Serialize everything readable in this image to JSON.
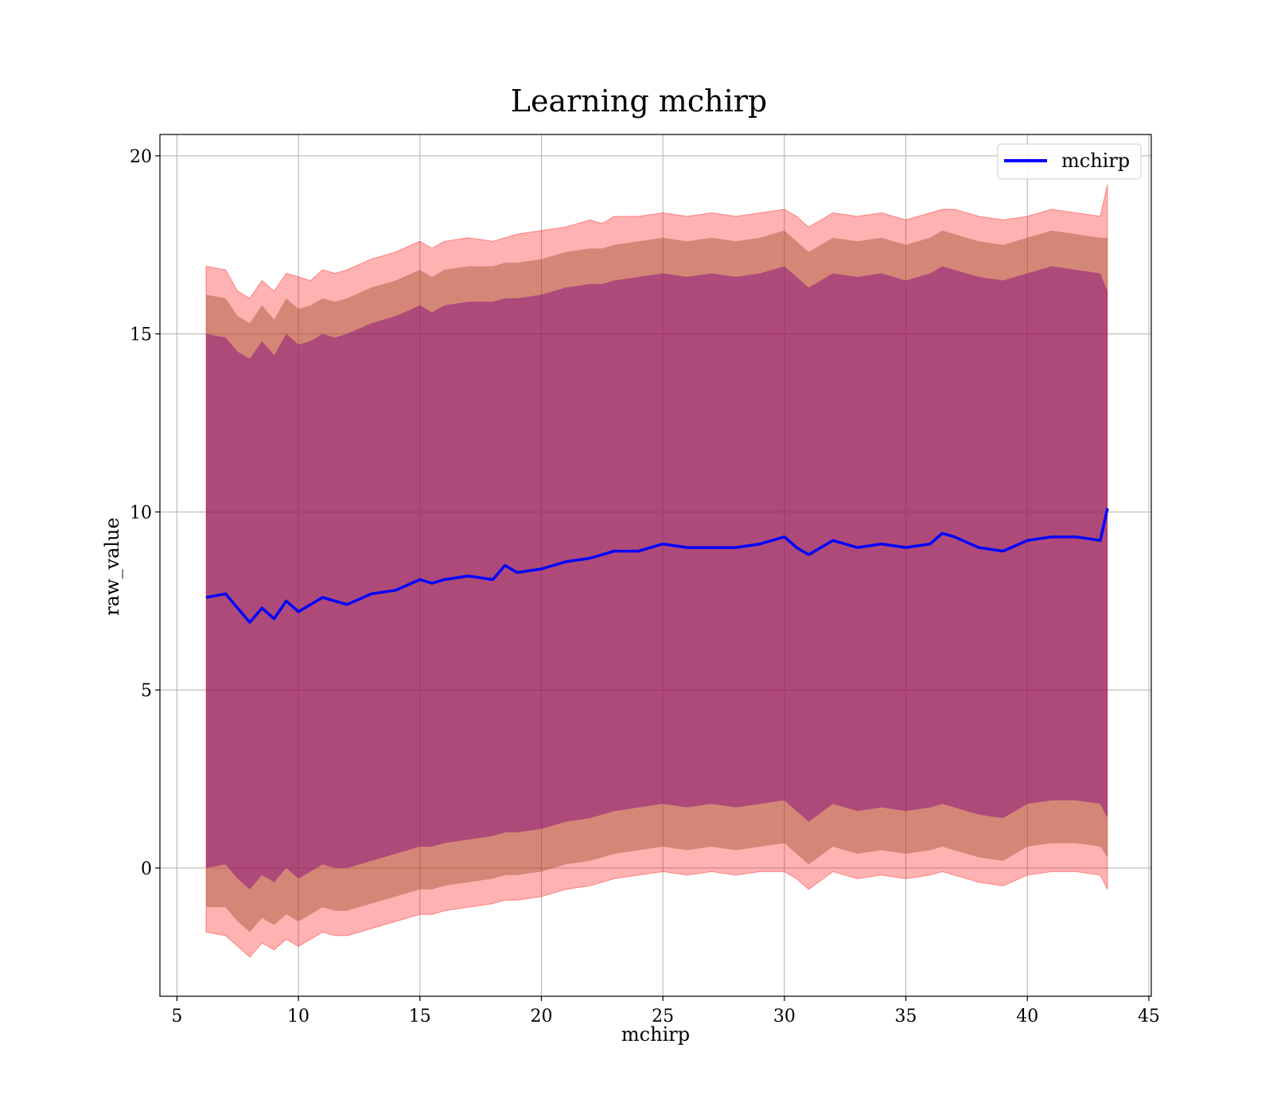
{
  "chart_data": {
    "type": "line",
    "title": "Learning mchirp",
    "xlabel": "mchirp",
    "ylabel": "raw_value",
    "xlim": [
      4.3,
      45.1
    ],
    "ylim": [
      -3.6,
      20.6
    ],
    "xticks": [
      5,
      10,
      15,
      20,
      25,
      30,
      35,
      40,
      45
    ],
    "yticks": [
      0,
      5,
      10,
      15,
      20
    ],
    "grid": true,
    "legend": {
      "position": "top-right",
      "entries": [
        "mchirp"
      ]
    },
    "colors": {
      "line": "#0000ff",
      "band_outer": "#ff0000",
      "band_middle": "#a0522d",
      "band_inner": "#800080"
    },
    "series": [
      {
        "name": "mchirp",
        "x": [
          6.2,
          7.0,
          7.5,
          8.0,
          8.5,
          9.0,
          9.5,
          10.0,
          10.5,
          11.0,
          11.5,
          12.0,
          13.0,
          14.0,
          15.0,
          15.5,
          16.0,
          17.0,
          18.0,
          18.5,
          19.0,
          20.0,
          21.0,
          22.0,
          22.5,
          23.0,
          24.0,
          25.0,
          26.0,
          27.0,
          28.0,
          29.0,
          30.0,
          30.5,
          31.0,
          32.0,
          33.0,
          34.0,
          35.0,
          36.0,
          36.5,
          37.0,
          38.0,
          39.0,
          40.0,
          41.0,
          42.0,
          43.0,
          43.3
        ],
        "y": [
          7.6,
          7.7,
          7.3,
          6.9,
          7.3,
          7.0,
          7.5,
          7.2,
          7.4,
          7.6,
          7.5,
          7.4,
          7.7,
          7.8,
          8.1,
          8.0,
          8.1,
          8.2,
          8.1,
          8.5,
          8.3,
          8.4,
          8.6,
          8.7,
          8.8,
          8.9,
          8.9,
          9.1,
          9.0,
          9.0,
          9.0,
          9.1,
          9.3,
          9.0,
          8.8,
          9.2,
          9.0,
          9.1,
          9.0,
          9.1,
          9.4,
          9.3,
          9.0,
          8.9,
          9.2,
          9.3,
          9.3,
          9.2,
          10.1
        ],
        "band_outer_upper": [
          16.9,
          16.8,
          16.2,
          16.0,
          16.5,
          16.2,
          16.7,
          16.6,
          16.5,
          16.8,
          16.7,
          16.8,
          17.1,
          17.3,
          17.6,
          17.4,
          17.6,
          17.7,
          17.6,
          17.7,
          17.8,
          17.9,
          18.0,
          18.2,
          18.1,
          18.3,
          18.3,
          18.4,
          18.3,
          18.4,
          18.3,
          18.4,
          18.5,
          18.3,
          18.0,
          18.4,
          18.3,
          18.4,
          18.2,
          18.4,
          18.5,
          18.5,
          18.3,
          18.2,
          18.3,
          18.5,
          18.4,
          18.3,
          19.2
        ],
        "band_outer_lower": [
          -1.8,
          -1.9,
          -2.2,
          -2.5,
          -2.1,
          -2.3,
          -2.0,
          -2.2,
          -2.0,
          -1.8,
          -1.9,
          -1.9,
          -1.7,
          -1.5,
          -1.3,
          -1.3,
          -1.2,
          -1.1,
          -1.0,
          -0.9,
          -0.9,
          -0.8,
          -0.6,
          -0.5,
          -0.4,
          -0.3,
          -0.2,
          -0.1,
          -0.2,
          -0.1,
          -0.2,
          -0.1,
          -0.1,
          -0.3,
          -0.6,
          -0.1,
          -0.3,
          -0.2,
          -0.3,
          -0.2,
          -0.1,
          -0.2,
          -0.4,
          -0.5,
          -0.2,
          -0.1,
          -0.1,
          -0.2,
          -0.6
        ],
        "band_middle_upper": [
          16.1,
          16.0,
          15.5,
          15.3,
          15.8,
          15.4,
          16.0,
          15.7,
          15.8,
          16.0,
          15.9,
          16.0,
          16.3,
          16.5,
          16.8,
          16.6,
          16.8,
          16.9,
          16.9,
          17.0,
          17.0,
          17.1,
          17.3,
          17.4,
          17.4,
          17.5,
          17.6,
          17.7,
          17.6,
          17.7,
          17.6,
          17.7,
          17.9,
          17.6,
          17.3,
          17.7,
          17.6,
          17.7,
          17.5,
          17.7,
          17.9,
          17.8,
          17.6,
          17.5,
          17.7,
          17.9,
          17.8,
          17.7,
          17.7
        ],
        "band_middle_lower": [
          -1.1,
          -1.1,
          -1.5,
          -1.8,
          -1.4,
          -1.6,
          -1.3,
          -1.5,
          -1.3,
          -1.1,
          -1.2,
          -1.2,
          -1.0,
          -0.8,
          -0.6,
          -0.6,
          -0.5,
          -0.4,
          -0.3,
          -0.2,
          -0.2,
          -0.1,
          0.1,
          0.2,
          0.3,
          0.4,
          0.5,
          0.6,
          0.5,
          0.6,
          0.5,
          0.6,
          0.7,
          0.4,
          0.1,
          0.6,
          0.4,
          0.5,
          0.4,
          0.5,
          0.6,
          0.5,
          0.3,
          0.2,
          0.6,
          0.7,
          0.7,
          0.6,
          0.3
        ],
        "band_inner_upper": [
          15.0,
          14.9,
          14.5,
          14.3,
          14.8,
          14.4,
          15.0,
          14.7,
          14.8,
          15.0,
          14.9,
          15.0,
          15.3,
          15.5,
          15.8,
          15.6,
          15.8,
          15.9,
          15.9,
          16.0,
          16.0,
          16.1,
          16.3,
          16.4,
          16.4,
          16.5,
          16.6,
          16.7,
          16.6,
          16.7,
          16.6,
          16.7,
          16.9,
          16.6,
          16.3,
          16.7,
          16.6,
          16.7,
          16.5,
          16.7,
          16.9,
          16.8,
          16.6,
          16.5,
          16.7,
          16.9,
          16.8,
          16.7,
          16.2
        ],
        "band_inner_lower": [
          0.0,
          0.1,
          -0.3,
          -0.6,
          -0.2,
          -0.4,
          0.0,
          -0.3,
          -0.1,
          0.1,
          0.0,
          0.0,
          0.2,
          0.4,
          0.6,
          0.6,
          0.7,
          0.8,
          0.9,
          1.0,
          1.0,
          1.1,
          1.3,
          1.4,
          1.5,
          1.6,
          1.7,
          1.8,
          1.7,
          1.8,
          1.7,
          1.8,
          1.9,
          1.6,
          1.3,
          1.8,
          1.6,
          1.7,
          1.6,
          1.7,
          1.8,
          1.7,
          1.5,
          1.4,
          1.8,
          1.9,
          1.9,
          1.8,
          1.4
        ]
      }
    ]
  }
}
